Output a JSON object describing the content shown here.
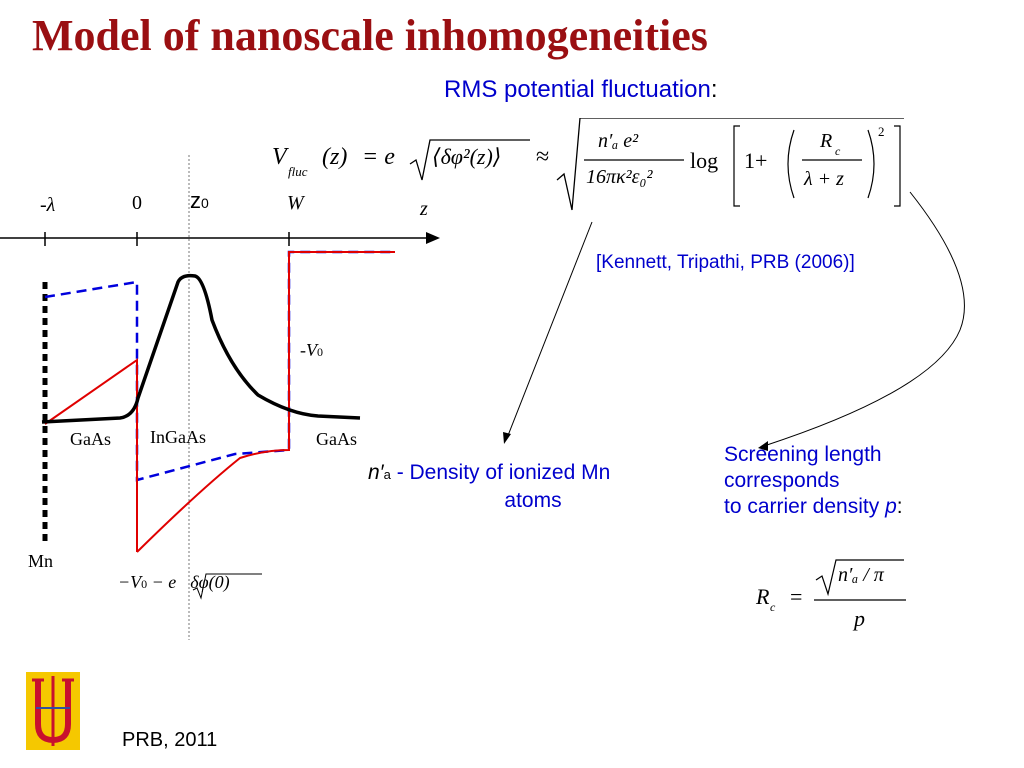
{
  "title": "Model of nanoscale inhomogeneities",
  "rms_heading": {
    "text": "RMS potential fluctuation",
    "suffix": ":"
  },
  "equation": {
    "lhs_symbol": "V",
    "lhs_sub": "fluc",
    "lhs_arg": "(z)",
    "equals": "= e",
    "rms_inner": "⟨δφ²(z)⟩",
    "approx": "≈",
    "frac_num": "n′ₐ e²",
    "frac_den": "16πκ²ε₀²",
    "log": "log",
    "one_plus": "1+",
    "rc_num": "R",
    "rc_sub": "c",
    "rc_den": "λ + z",
    "power": "2"
  },
  "citation": "[Kennett, Tripathi, PRB (2006)]",
  "density_note": {
    "symbol": "n′",
    "sub": "a",
    "text": " - Density of ionized Mn",
    "line2": "atoms"
  },
  "screening_note": {
    "line1": "Screening length",
    "line2": "corresponds",
    "line3_prefix": "to carrier density ",
    "line3_var": "p",
    "line3_suffix": ":"
  },
  "rc_formula": {
    "lhs": "R",
    "lhs_sub": "c",
    "equals": "=",
    "num": "n′ₐ / π",
    "den": "p"
  },
  "plot_labels": {
    "minus_lambda": "-λ",
    "zero": "0",
    "z0": "z",
    "z0_sub": "0",
    "W": "W",
    "z_axis": "z",
    "minus_V0": "-V",
    "minus_V0_sub": "0",
    "gaas_left": "GaAs",
    "ingaas": "InGaAs",
    "gaas_right": "GaAs",
    "mn": "Mn",
    "bottom_expr_a": "−V",
    "bottom_expr_sub": "0",
    "bottom_expr_b": " − e",
    "bottom_expr_c": "δφ(0)"
  },
  "footer": "PRB, 2011",
  "logo": {
    "name": "university-logo",
    "colors": {
      "bg": "#f5c800",
      "mark": "#c8102e"
    }
  },
  "colors": {
    "title": "#9a0f12",
    "blue_text": "#0000cc",
    "red": "#e00000",
    "blue_dash": "#0000dd"
  }
}
